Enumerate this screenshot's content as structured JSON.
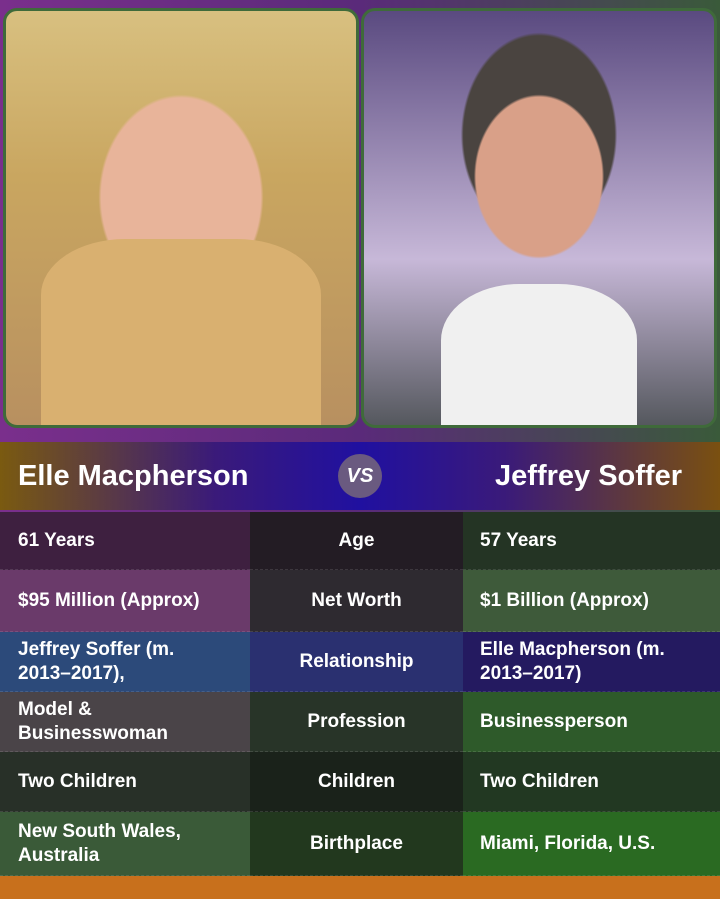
{
  "left": {
    "name": "Elle Macpherson"
  },
  "right": {
    "name": "Jeffrey Soffer"
  },
  "vs_label": "VS",
  "rows": [
    {
      "label": "Age",
      "left": "61 Years",
      "right": "57 Years",
      "colors": [
        "#3e2040",
        "#231c24",
        "#243424"
      ]
    },
    {
      "label": "Net Worth",
      "left": "$95 Million (Approx)",
      "right": "$1 Billion (Approx)",
      "colors": [
        "#6a3a6a",
        "#2e2a30",
        "#3e5a3a"
      ]
    },
    {
      "label": "Relationship",
      "left": "Jeffrey Soffer (m. 2013–2017),",
      "right": "Elle Macpherson (m. 2013–2017)",
      "colors": [
        "#2c4a7a",
        "#2a3070",
        "#241a60"
      ]
    },
    {
      "label": "Profession",
      "left": "Model & Businesswoman",
      "right": "Businessperson",
      "colors": [
        "#4a4448",
        "#283428",
        "#2e5a2a"
      ]
    },
    {
      "label": "Children",
      "left": "Two Children",
      "right": "Two Children",
      "colors": [
        "#283028",
        "#1a221a",
        "#223822"
      ]
    },
    {
      "label": "Birthplace",
      "left": "New South Wales, Australia",
      "right": "Miami, Florida, U.S.",
      "colors": [
        "#3a5a38",
        "#22381e",
        "#2a6a22"
      ]
    }
  ]
}
